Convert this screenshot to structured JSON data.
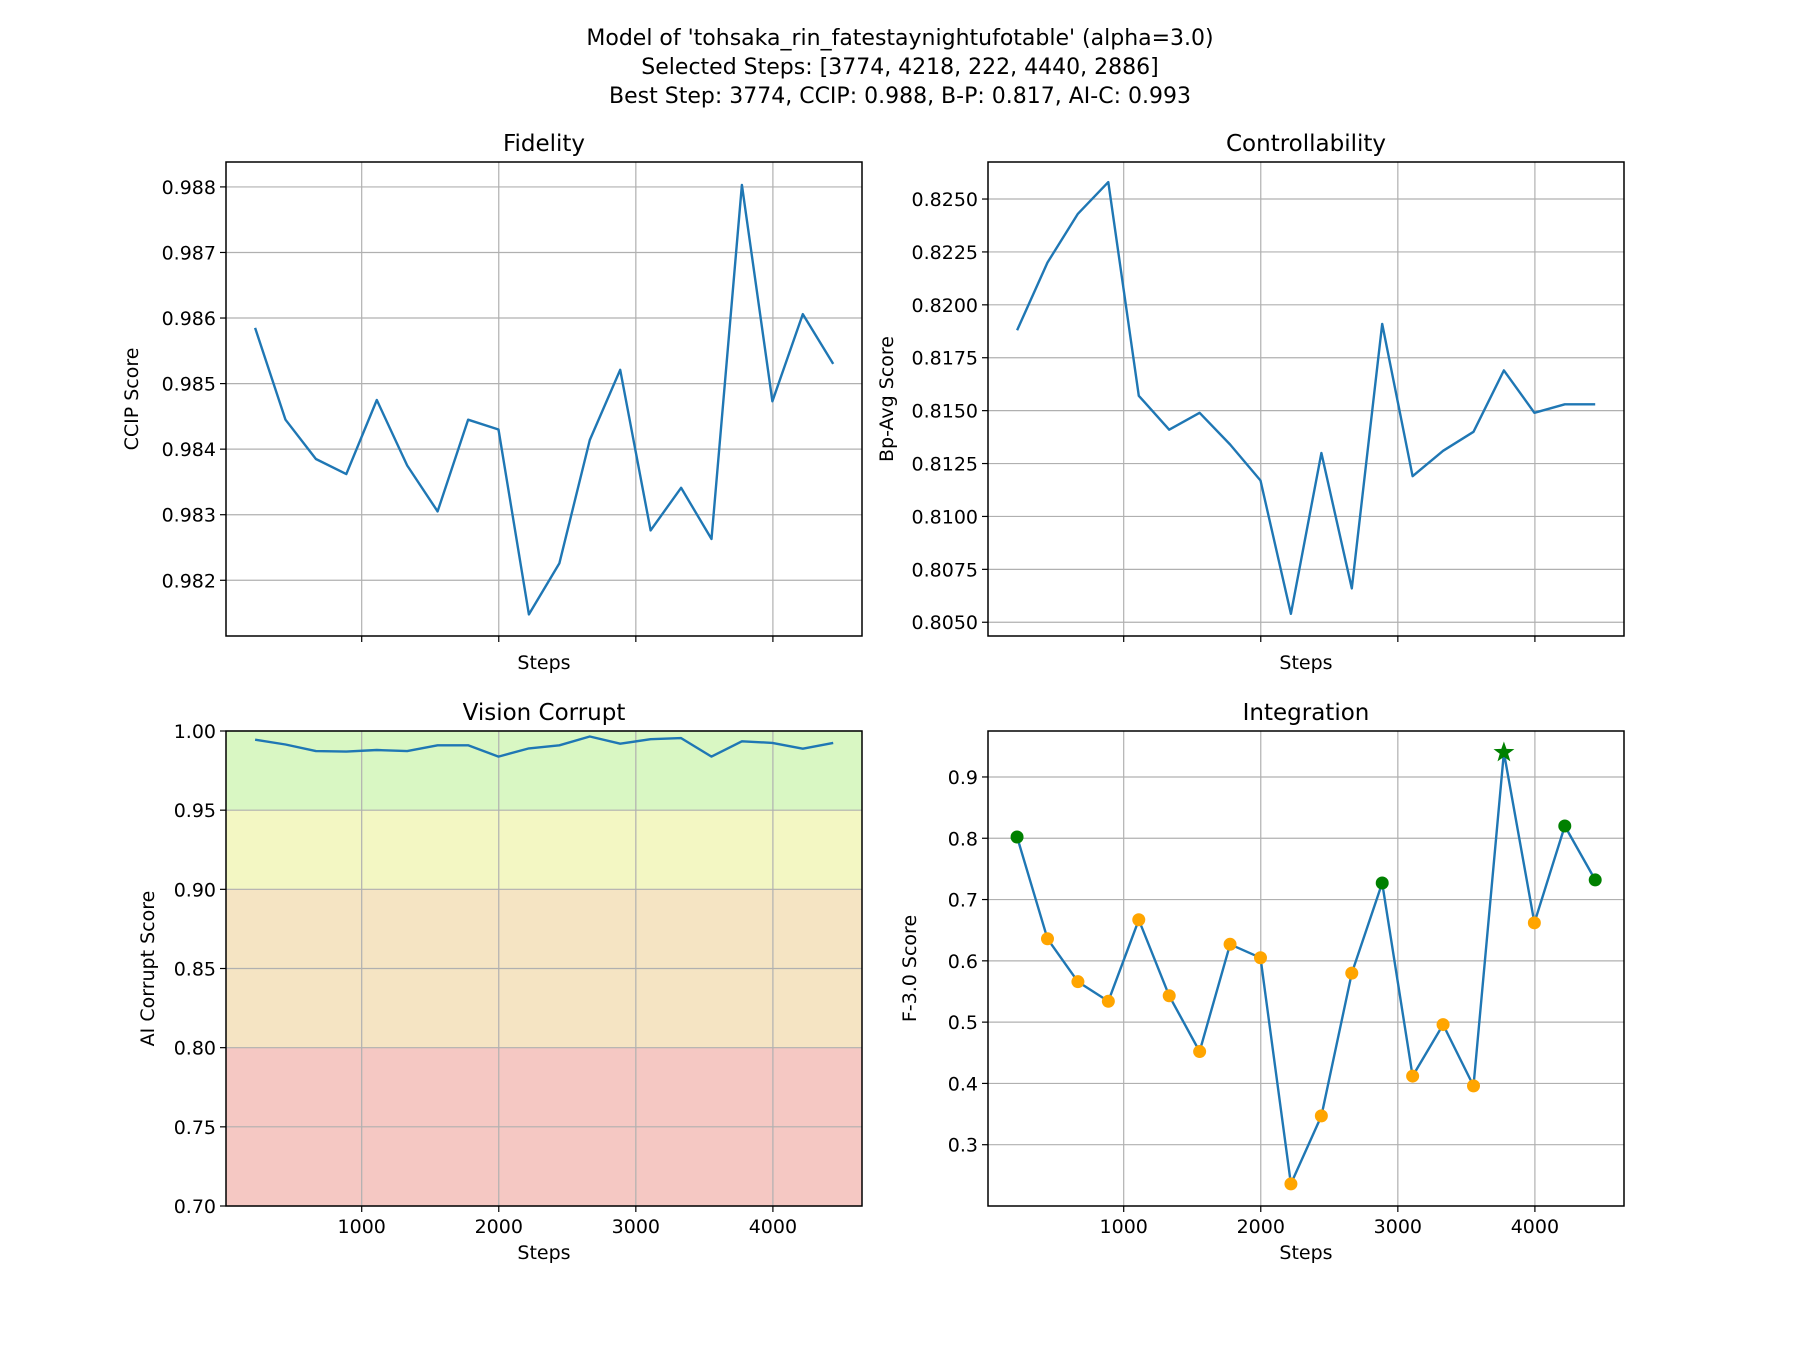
{
  "figure": {
    "title_lines": [
      "Model of 'tohsaka_rin_fatestaynightufotable' (alpha=3.0)",
      "Selected Steps: [3774, 4218, 222, 4440, 2886]",
      "Best Step: 3774, CCIP: 0.988, B-P: 0.817, AI-C: 0.993"
    ]
  },
  "colors": {
    "line": "#1f77b4",
    "selected_marker": "#008000",
    "other_marker": "#ffa500",
    "best_marker": "#008000",
    "band_good": "#d9f7c3",
    "band_ok": "#f3f7c3",
    "band_warn": "#f5e4c3",
    "band_bad": "#f5c8c3"
  },
  "chart_data": [
    {
      "id": "fidelity",
      "type": "line",
      "title": "Fidelity",
      "xlabel": "Steps",
      "ylabel": "CCIP Score",
      "xlim": [
        10,
        4650
      ],
      "ylim": [
        0.98115,
        0.98838
      ],
      "xticks": [
        1000,
        2000,
        3000,
        4000
      ],
      "show_xtick_labels": false,
      "yticks": [
        0.982,
        0.983,
        0.984,
        0.985,
        0.986,
        0.987,
        0.988
      ],
      "ytick_labels": [
        "0.982",
        "0.983",
        "0.984",
        "0.985",
        "0.986",
        "0.987",
        "0.988"
      ],
      "grid": true,
      "x": [
        222,
        444,
        666,
        888,
        1110,
        1332,
        1554,
        1776,
        1998,
        2220,
        2442,
        2664,
        2886,
        3108,
        3330,
        3552,
        3774,
        3996,
        4218,
        4440
      ],
      "y": [
        0.98585,
        0.98445,
        0.98385,
        0.98362,
        0.98475,
        0.98375,
        0.98305,
        0.98445,
        0.9843,
        0.98148,
        0.98226,
        0.98414,
        0.98521,
        0.98276,
        0.98341,
        0.98263,
        0.98803,
        0.98473,
        0.98606,
        0.9853
      ]
    },
    {
      "id": "controllability",
      "type": "line",
      "title": "Controllability",
      "xlabel": "Steps",
      "ylabel": "Bp-Avg Score",
      "xlim": [
        10,
        4650
      ],
      "ylim": [
        0.80435,
        0.82675
      ],
      "xticks": [
        1000,
        2000,
        3000,
        4000
      ],
      "show_xtick_labels": false,
      "yticks": [
        0.805,
        0.8075,
        0.81,
        0.8125,
        0.815,
        0.8175,
        0.82,
        0.8225,
        0.825
      ],
      "ytick_labels": [
        "0.8050",
        "0.8075",
        "0.8100",
        "0.8125",
        "0.8150",
        "0.8175",
        "0.8200",
        "0.8225",
        "0.8250"
      ],
      "grid": true,
      "x": [
        222,
        444,
        666,
        888,
        1110,
        1332,
        1554,
        1776,
        1998,
        2220,
        2442,
        2664,
        2886,
        3108,
        3330,
        3552,
        3774,
        3996,
        4218,
        4440
      ],
      "y": [
        0.8188,
        0.822,
        0.8243,
        0.8258,
        0.8157,
        0.8141,
        0.8149,
        0.8134,
        0.8117,
        0.8054,
        0.813,
        0.8066,
        0.8191,
        0.8119,
        0.8131,
        0.814,
        0.8169,
        0.8149,
        0.8153,
        0.8153
      ]
    },
    {
      "id": "vision-corrupt",
      "type": "line",
      "title": "Vision Corrupt",
      "xlabel": "Steps",
      "ylabel": "AI Corrupt Score",
      "xlim": [
        10,
        4650
      ],
      "ylim": [
        0.7,
        1.0
      ],
      "xticks": [
        1000,
        2000,
        3000,
        4000
      ],
      "xtick_labels": [
        "1000",
        "2000",
        "3000",
        "4000"
      ],
      "show_xtick_labels": true,
      "yticks": [
        0.7,
        0.75,
        0.8,
        0.85,
        0.9,
        0.95,
        1.0
      ],
      "ytick_labels": [
        "0.70",
        "0.75",
        "0.80",
        "0.85",
        "0.90",
        "0.95",
        "1.00"
      ],
      "grid": true,
      "bands": [
        {
          "from": 0.95,
          "to": 1.0,
          "color": "#d9f7c3"
        },
        {
          "from": 0.9,
          "to": 0.95,
          "color": "#f3f7c3"
        },
        {
          "from": 0.8,
          "to": 0.9,
          "color": "#f5e4c3"
        },
        {
          "from": 0.7,
          "to": 0.8,
          "color": "#f5c8c3"
        }
      ],
      "x": [
        222,
        444,
        666,
        888,
        1110,
        1332,
        1554,
        1776,
        1998,
        2220,
        2442,
        2664,
        2886,
        3108,
        3330,
        3552,
        3774,
        3996,
        4218,
        4440
      ],
      "y": [
        0.9945,
        0.9915,
        0.9873,
        0.987,
        0.988,
        0.9873,
        0.991,
        0.991,
        0.9838,
        0.989,
        0.991,
        0.9965,
        0.992,
        0.9948,
        0.9955,
        0.9838,
        0.9935,
        0.9925,
        0.9888,
        0.9925
      ]
    },
    {
      "id": "integration",
      "type": "line",
      "title": "Integration",
      "xlabel": "Steps",
      "ylabel": "F-3.0 Score",
      "xlim": [
        10,
        4650
      ],
      "ylim": [
        0.2,
        0.975
      ],
      "xticks": [
        1000,
        2000,
        3000,
        4000
      ],
      "xtick_labels": [
        "1000",
        "2000",
        "3000",
        "4000"
      ],
      "show_xtick_labels": true,
      "yticks": [
        0.3,
        0.4,
        0.5,
        0.6,
        0.7,
        0.8,
        0.9
      ],
      "ytick_labels": [
        "0.3",
        "0.4",
        "0.5",
        "0.6",
        "0.7",
        "0.8",
        "0.9"
      ],
      "grid": true,
      "x": [
        222,
        444,
        666,
        888,
        1110,
        1332,
        1554,
        1776,
        1998,
        2220,
        2442,
        2664,
        2886,
        3108,
        3330,
        3552,
        3774,
        3996,
        4218,
        4440
      ],
      "y": [
        0.802,
        0.636,
        0.566,
        0.534,
        0.667,
        0.543,
        0.452,
        0.627,
        0.605,
        0.236,
        0.347,
        0.58,
        0.727,
        0.412,
        0.496,
        0.396,
        0.94,
        0.662,
        0.82,
        0.732
      ],
      "selected_steps": [
        3774,
        4218,
        222,
        4440,
        2886
      ],
      "best_step": 3774
    }
  ]
}
